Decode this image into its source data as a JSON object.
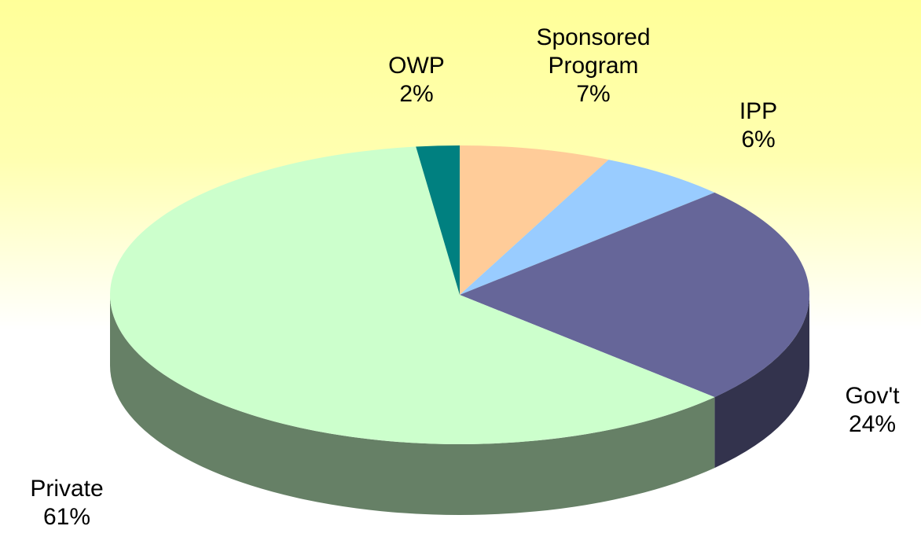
{
  "chart_data": {
    "type": "pie",
    "categories": [
      "Sponsored Program",
      "IPP",
      "Gov't",
      "Private",
      "OWP"
    ],
    "values": [
      7,
      6,
      24,
      61,
      2
    ],
    "value_labels": [
      "7%",
      "6%",
      "24%",
      "61%",
      "2%"
    ],
    "colors": [
      "#ffcc99",
      "#99ccff",
      "#666699",
      "#ccffcc",
      "#008080"
    ]
  }
}
